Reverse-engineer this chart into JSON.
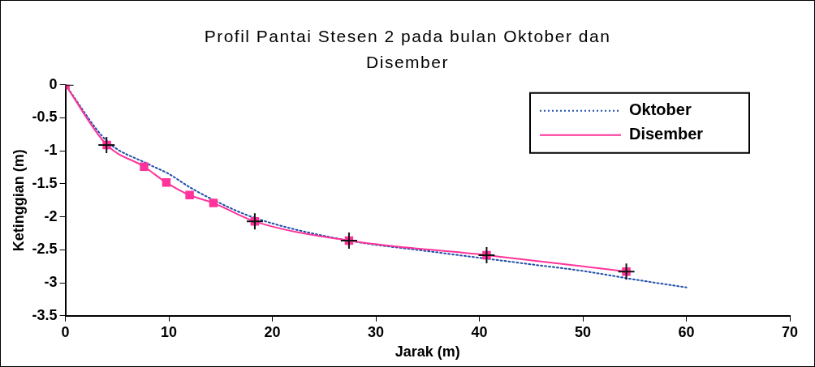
{
  "chart_data": {
    "type": "line",
    "title": "Profil Pantai Stesen 2 pada bulan Oktober dan Disember",
    "xlabel": "Jarak (m)",
    "ylabel": "Ketinggian (m)",
    "xlim": [
      0,
      70
    ],
    "xticks": [
      0,
      10,
      20,
      30,
      40,
      50,
      60,
      70
    ],
    "ylim": [
      -3.5,
      0
    ],
    "yticks": [
      -3.5,
      -3,
      -2.5,
      -2,
      -1.5,
      -1,
      -0.5,
      0
    ],
    "grid": false,
    "legend": "top right",
    "series": [
      {
        "name": "Oktober",
        "color": "#1f4fa8",
        "line_style": "dotted",
        "marker": "none",
        "x": [
          0,
          4,
          8,
          10,
          12,
          14,
          18,
          27,
          35,
          40,
          45,
          50,
          55,
          60
        ],
        "values": [
          0,
          -0.85,
          -1.2,
          -1.35,
          -1.55,
          -1.72,
          -2.0,
          -2.35,
          -2.52,
          -2.62,
          -2.72,
          -2.82,
          -2.95,
          -3.07
        ]
      },
      {
        "name": "Disember",
        "color": "#ff3399",
        "line_style": "solid",
        "marker": "square",
        "x": [
          0,
          4,
          7.6,
          9.75,
          12,
          14.3,
          18.3,
          27.4,
          40.7,
          54.2
        ],
        "values": [
          0,
          -0.91,
          -1.24,
          -1.48,
          -1.67,
          -1.79,
          -2.07,
          -2.36,
          -2.58,
          -2.83
        ]
      },
      {
        "type": "scatter",
        "color": "#111111",
        "marker": "cross",
        "x": [
          0,
          3.97,
          18.3,
          27.4,
          40.7,
          54.2
        ],
        "values": [
          0,
          -0.91,
          -2.07,
          -2.36,
          -2.58,
          -2.83
        ]
      }
    ]
  }
}
